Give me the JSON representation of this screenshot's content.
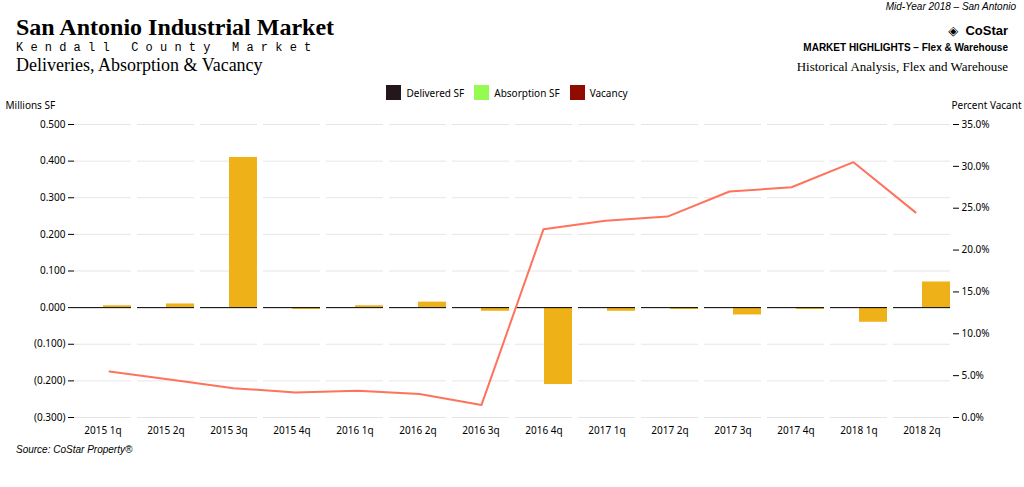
{
  "chart_data": {
    "type": "bar",
    "title": "Deliveries, Absorption & Vacancy",
    "subtitle": "Historical Analysis, Flex and Warehouse",
    "annotations": [
      "Mid-Year 2018 – San Antonio",
      "San Antonio",
      " Industrial Market",
      "◈  CoStar",
      "K e n d a l l   C o u n t y   M a r k e t",
      "MARKET HIGHLIGHTS – Flex & Warehouse",
      "Source: CoStar Property®"
    ],
    "categories": [
      "2015 1q",
      "2015 2q",
      "2015 3q",
      "2015 4q",
      "2016 1q",
      "2016 2q",
      "2016 3q",
      "2016 4q",
      "2017 1q",
      "2017 2q",
      "2017 3q",
      "2017 4q",
      "2018 1q",
      "2018 2q"
    ],
    "series": [
      {
        "name": "Delivered SF",
        "type": "bar",
        "values": [
          0.0,
          0.0,
          0.0,
          0.0,
          0.0,
          0.0,
          0.0,
          0.0,
          0.0,
          0.0,
          0.0,
          0.0,
          0.0,
          0.0
        ]
      },
      {
        "name": "Absorption SF",
        "type": "bar",
        "values": [
          0.005,
          0.01,
          0.41,
          -0.005,
          0.005,
          0.015,
          -0.01,
          -0.21,
          -0.01,
          -0.005,
          -0.02,
          -0.005,
          -0.04,
          0.07
        ]
      },
      {
        "name": "Vacancy",
        "type": "line",
        "axis": "y2",
        "values": [
          5.5,
          4.5,
          3.5,
          3.0,
          3.2,
          2.8,
          1.5,
          22.5,
          23.5,
          24.0,
          27.0,
          27.5,
          30.5,
          24.5
        ]
      }
    ],
    "ylabel": "Millions SF",
    "y2label": "Percent Vacant",
    "ylim": [
      -0.3,
      0.5
    ],
    "yticks": [
      {
        "value": -0.3,
        "label": "(0.300)"
      },
      {
        "value": -0.2,
        "label": "(0.200)"
      },
      {
        "value": -0.1,
        "label": "(0.100)"
      },
      {
        "value": 0.0,
        "label": "0.000"
      },
      {
        "value": 0.1,
        "label": "0.100"
      },
      {
        "value": 0.2,
        "label": "0.200"
      },
      {
        "value": 0.3,
        "label": "0.300"
      },
      {
        "value": 0.4,
        "label": "0.400"
      },
      {
        "value": 0.5,
        "label": "0.500"
      }
    ],
    "y2lim": [
      0.0,
      35.0
    ],
    "y2ticks": [
      {
        "value": 0.0,
        "label": "0.0%"
      },
      {
        "value": 5.0,
        "label": "5.0%"
      },
      {
        "value": 10.0,
        "label": "10.0%"
      },
      {
        "value": 15.0,
        "label": "15.0%"
      },
      {
        "value": 20.0,
        "label": "20.0%"
      },
      {
        "value": 25.0,
        "label": "25.0%"
      },
      {
        "value": 30.0,
        "label": "30.0%"
      },
      {
        "value": 35.0,
        "label": "35.0%"
      }
    ],
    "grid": true,
    "legend": "top"
  }
}
